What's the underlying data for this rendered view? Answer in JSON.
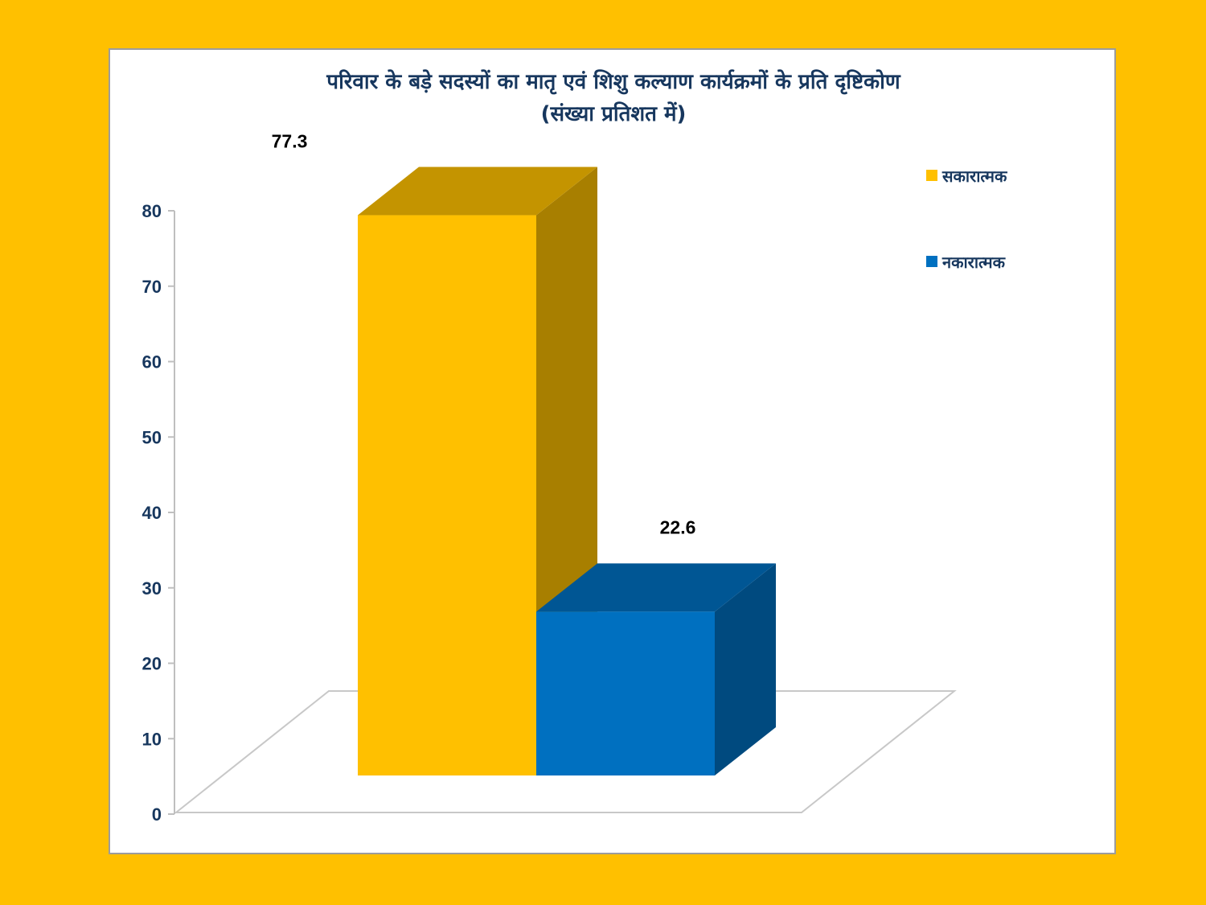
{
  "chart_data": {
    "type": "bar",
    "title": "परिवार के बड़े सदस्यों का मातृ एवं शिशु कल्याण कार्यक्रमों के प्रति दृष्टिकोण",
    "subtitle": "(संख्या प्रतिशत में)",
    "xlabel": "",
    "ylabel": "",
    "ylim": [
      0,
      80
    ],
    "yticks": [
      "0",
      "10",
      "20",
      "30",
      "40",
      "50",
      "60",
      "70",
      "80"
    ],
    "grid": false,
    "legend_position": "top-right",
    "three_d": true,
    "series": [
      {
        "name": "सकारात्मक",
        "value": 77.3,
        "label": "77.3",
        "color": "#FFC000"
      },
      {
        "name": "नकारात्मक",
        "value": 22.6,
        "label": "22.6",
        "color": "#0070C0"
      }
    ]
  },
  "colors": {
    "background": "#FFC000",
    "panel": "#FFFFFF",
    "panel_border": "#9C9C9C",
    "axis_text": "#17375E"
  }
}
